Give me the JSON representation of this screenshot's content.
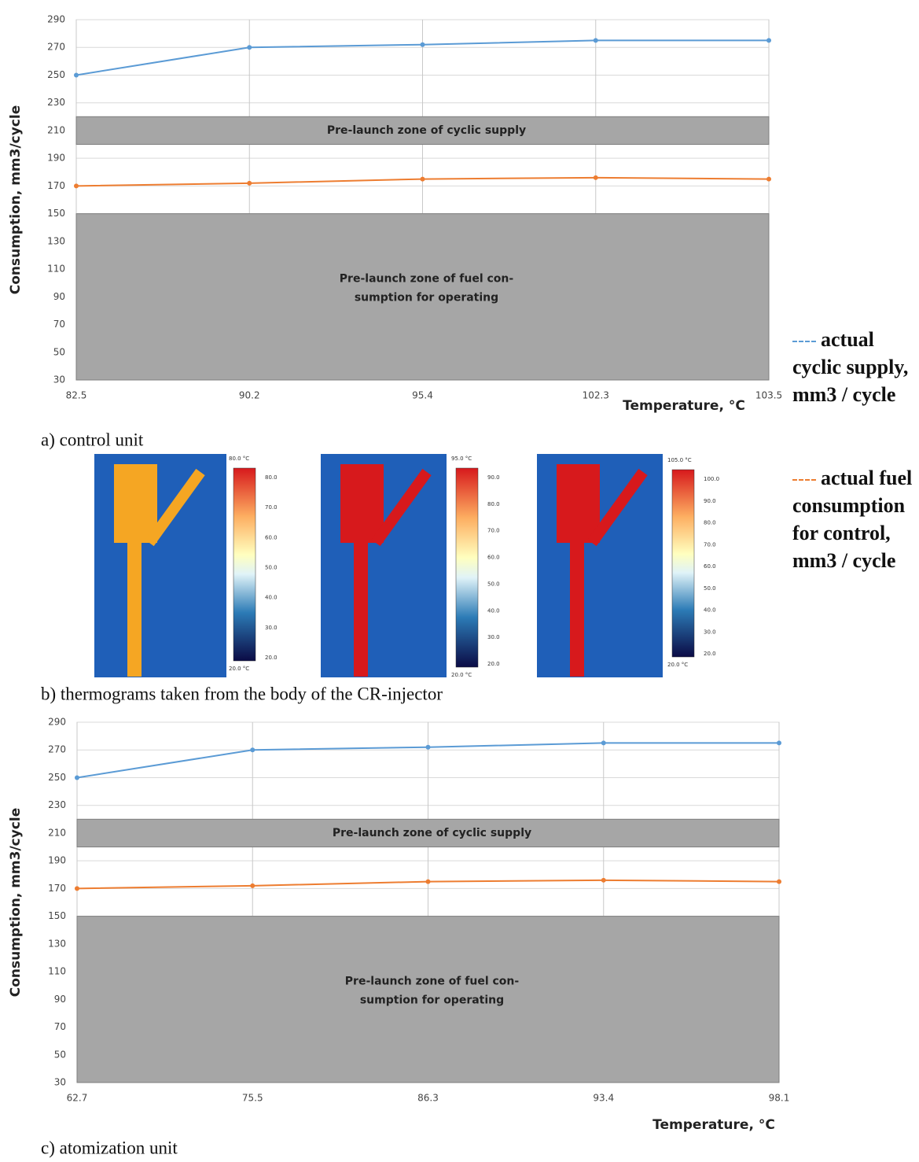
{
  "chart_data": [
    {
      "type": "line",
      "y_label": "Consumption,  mm3/cycle",
      "x_label": "Temperature, °C",
      "categories": [
        "82.5",
        "90.2",
        "95.4",
        "102.3",
        "103.5"
      ],
      "series": [
        {
          "name": "actual cyclic supply, mm3 / cycle",
          "color": "#5b9bd5",
          "values": [
            250,
            270,
            272,
            275,
            275
          ]
        },
        {
          "name": "actual fuel consumption for control, mm3 / cycle",
          "color": "#ed7d31",
          "values": [
            170,
            172,
            175,
            176,
            175
          ]
        }
      ],
      "bands": [
        {
          "from": 200,
          "to": 220,
          "label_lines": [
            "Pre-launch zone of cyclic supply"
          ]
        },
        {
          "from": 30,
          "to": 150,
          "label_lines": [
            "Pre-launch zone of fuel con-",
            "sumption for operating"
          ]
        }
      ],
      "ylim": [
        30,
        290
      ],
      "yticks": [
        30,
        50,
        70,
        90,
        110,
        130,
        150,
        170,
        190,
        210,
        230,
        250,
        270,
        290
      ],
      "grid": true,
      "caption": "a) control unit"
    },
    {
      "type": "line",
      "y_label": "Consumption,  mm3/cycle",
      "x_label": "Temperature, °C",
      "categories": [
        "62.7",
        "75.5",
        "86.3",
        "93.4",
        "98.1"
      ],
      "series": [
        {
          "color": "#5b9bd5",
          "values": [
            250,
            270,
            272,
            275,
            275
          ]
        },
        {
          "color": "#ed7d31",
          "values": [
            170,
            172,
            175,
            176,
            175
          ]
        }
      ],
      "bands": [
        {
          "from": 200,
          "to": 220,
          "label_lines": [
            "Pre-launch zone of cyclic supply"
          ]
        },
        {
          "from": 30,
          "to": 150,
          "label_lines": [
            "Pre-launch zone of fuel con-",
            "sumption for operating"
          ]
        }
      ],
      "ylim": [
        30,
        290
      ],
      "yticks": [
        30,
        50,
        70,
        90,
        110,
        130,
        150,
        170,
        190,
        210,
        230,
        250,
        270,
        290
      ],
      "grid": true,
      "caption": "c) atomization unit"
    }
  ],
  "thermograms": {
    "caption": "b) thermograms taken from the body of the CR-injector",
    "panels": [
      {
        "max_label": "80.0 °C",
        "min_label": "20.0 °C",
        "ticks": [
          "80.0",
          "70.0",
          "60.0",
          "50.0",
          "40.0",
          "30.0",
          "20.0"
        ]
      },
      {
        "max_label": "95.0 °C",
        "min_label": "20.0 °C",
        "ticks": [
          "90.0",
          "80.0",
          "70.0",
          "60.0",
          "50.0",
          "40.0",
          "30.0",
          "20.0"
        ]
      },
      {
        "max_label": "105.0 °C",
        "min_label": "20.0 °C",
        "ticks": [
          "100.0",
          "90.0",
          "80.0",
          "70.0",
          "60.0",
          "50.0",
          "40.0",
          "30.0",
          "20.0"
        ]
      }
    ]
  }
}
